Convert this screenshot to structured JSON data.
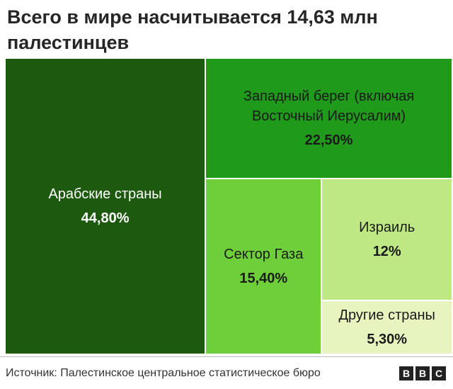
{
  "header": {
    "title": "Всего в мире насчитывается 14,63 млн палестинцев"
  },
  "chart_data": {
    "type": "treemap",
    "title": "Всего в мире насчитывается 14,63 млн палестинцев",
    "items": [
      {
        "id": "arab",
        "label": "Арабские страны",
        "value_label": "44,80%",
        "value": 44.8,
        "color": "#1d5a0f",
        "text_color": "#ffffff"
      },
      {
        "id": "westbank",
        "label": "Западный берег (включая Восточный Иерусалим)",
        "value_label": "22,50%",
        "value": 22.5,
        "color": "#1f9a1a",
        "text_color": "#1a1a1a"
      },
      {
        "id": "gaza",
        "label": "Сектор Газа",
        "value_label": "15,40%",
        "value": 15.4,
        "color": "#6fcf3b",
        "text_color": "#1a1a1a"
      },
      {
        "id": "israel",
        "label": "Израиль",
        "value_label": "12%",
        "value": 12,
        "color": "#bde884",
        "text_color": "#1a1a1a"
      },
      {
        "id": "other",
        "label": "Другие страны",
        "value_label": "5,30%",
        "value": 5.3,
        "color": "#e8f4bf",
        "text_color": "#1a1a1a"
      }
    ]
  },
  "footer": {
    "source": "Источник: Палестинское центральное статистическое бюро",
    "logo": [
      "B",
      "B",
      "C"
    ]
  }
}
